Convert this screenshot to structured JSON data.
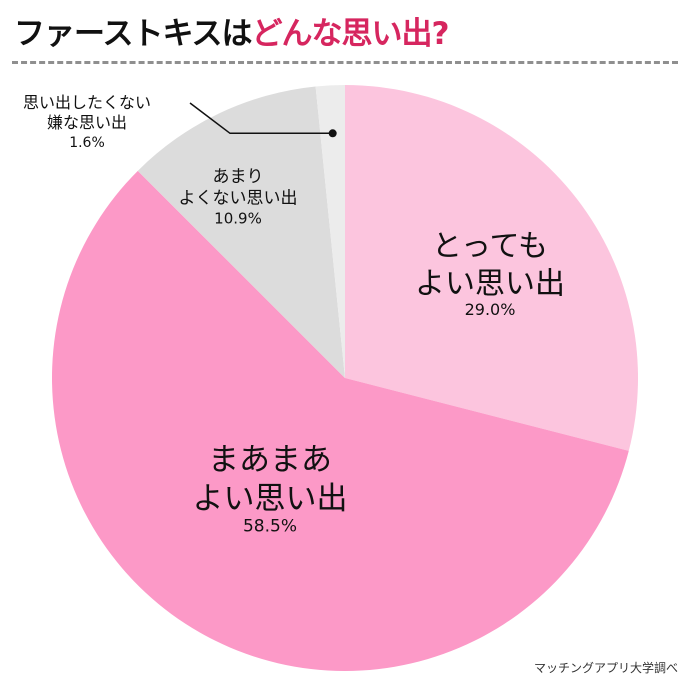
{
  "title": {
    "part1": "ファーストキスは",
    "part2": "どんな思い出?",
    "highlight_color": "#d6265f"
  },
  "source": "マッチングアプリ大学調べ",
  "chart_data": {
    "type": "pie",
    "title": "ファーストキスはどんな思い出?",
    "start": "12 o'clock",
    "direction": "clockwise",
    "slices": [
      {
        "line1": "とっても",
        "line2": "よい思い出",
        "value": 29.0,
        "value_label": "29.0%",
        "color": "#fcc5de"
      },
      {
        "line1": "まあまあ",
        "line2": "よい思い出",
        "value": 58.5,
        "value_label": "58.5%",
        "color": "#fc99c7"
      },
      {
        "line1": "あまり",
        "line2": "よくない思い出",
        "value": 10.9,
        "value_label": "10.9%",
        "color": "#dcdcdc"
      },
      {
        "line1": "思い出したくない",
        "line2": "嫌な思い出",
        "value": 1.6,
        "value_label": "1.6%",
        "color": "#ececec",
        "callout": true
      }
    ]
  }
}
